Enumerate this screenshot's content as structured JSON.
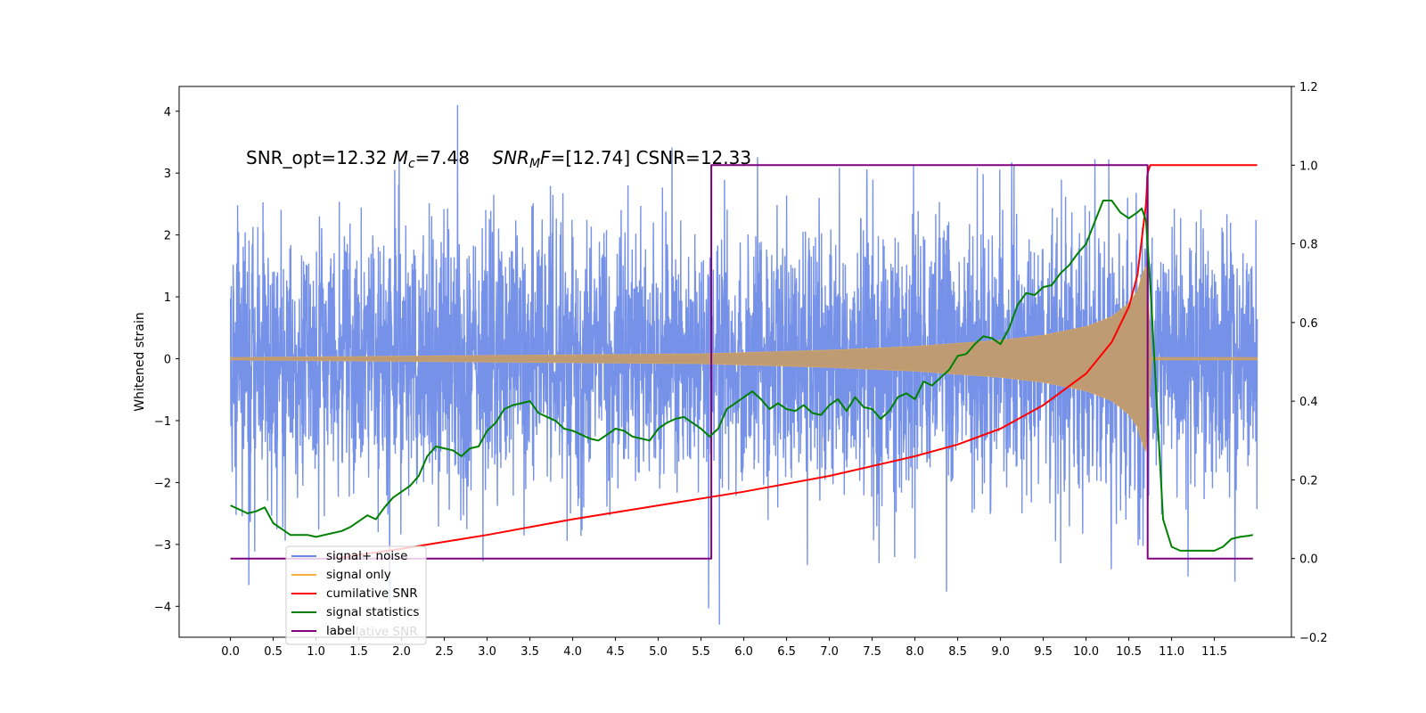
{
  "chart_data": {
    "type": "line",
    "title": "",
    "xlabel": "",
    "ylabel": "Whitened strain",
    "xlim": [
      -0.6,
      12.4
    ],
    "ylim": [
      -4.5,
      4.4
    ],
    "y2lim": [
      -0.2,
      1.2
    ],
    "grid": false,
    "legend_position": "lower-left",
    "x_ticks": [
      "0.0",
      "0.5",
      "1.0",
      "1.5",
      "2.0",
      "2.5",
      "3.0",
      "3.5",
      "4.0",
      "4.5",
      "5.0",
      "5.5",
      "6.0",
      "6.5",
      "7.0",
      "7.5",
      "8.0",
      "8.5",
      "9.0",
      "9.5",
      "10.0",
      "10.5",
      "11.0",
      "11.5"
    ],
    "y_ticks": [
      "4",
      "3",
      "2",
      "1",
      "0",
      "−1",
      "−2",
      "−3",
      "−4"
    ],
    "y2_ticks": [
      "1.2",
      "1.0",
      "0.8",
      "0.6",
      "0.4",
      "0.2",
      "0.0",
      "−0.2"
    ],
    "annotation": {
      "p1": "SNR_opt=12.32 ",
      "mc_M": "M",
      "mc_sub": "c",
      "p2": "=7.48    ",
      "snr_main": "SNR",
      "snr_sub": "M",
      "snr_F": "F",
      "p3": "=[12.74] CSNR=12.33"
    },
    "series": [
      {
        "name": "signal+ noise",
        "color": "#6a88e6",
        "axis": "left",
        "noise_std": 1.05,
        "x_range": [
          0.0,
          12.0
        ]
      },
      {
        "name": "signal only",
        "color": "#f5b041",
        "axis": "left",
        "x_range": [
          0.0,
          12.0
        ],
        "chirp_end": 10.72,
        "envelope": {
          "x": [
            0.0,
            5.5,
            7.0,
            8.0,
            9.0,
            9.5,
            10.0,
            10.3,
            10.5,
            10.6,
            10.65,
            10.7,
            10.72,
            10.75
          ],
          "y": [
            0.02,
            0.08,
            0.14,
            0.2,
            0.3,
            0.38,
            0.52,
            0.68,
            0.9,
            1.1,
            1.35,
            1.5,
            1.5,
            0.02
          ]
        }
      },
      {
        "name": "cumilative SNR",
        "color": "#ff0000",
        "axis": "right",
        "x": [
          1.2,
          2.0,
          3.0,
          4.0,
          5.0,
          6.0,
          7.0,
          8.0,
          8.5,
          9.0,
          9.5,
          10.0,
          10.3,
          10.5,
          10.6,
          10.7,
          10.72,
          10.75,
          12.0
        ],
        "y": [
          0.0,
          0.025,
          0.06,
          0.1,
          0.135,
          0.17,
          0.21,
          0.26,
          0.29,
          0.33,
          0.39,
          0.47,
          0.55,
          0.64,
          0.72,
          0.9,
          0.98,
          1.0,
          1.0
        ]
      },
      {
        "name": "signal statistics",
        "color": "#008000",
        "axis": "right",
        "x": [
          0.0,
          0.1,
          0.2,
          0.3,
          0.4,
          0.5,
          0.6,
          0.7,
          0.8,
          0.9,
          1.0,
          1.1,
          1.2,
          1.3,
          1.4,
          1.5,
          1.6,
          1.7,
          1.8,
          1.9,
          2.0,
          2.1,
          2.2,
          2.3,
          2.4,
          2.5,
          2.6,
          2.7,
          2.8,
          2.9,
          3.0,
          3.1,
          3.2,
          3.3,
          3.4,
          3.5,
          3.6,
          3.7,
          3.8,
          3.9,
          4.0,
          4.1,
          4.2,
          4.3,
          4.4,
          4.5,
          4.6,
          4.7,
          4.8,
          4.9,
          5.0,
          5.1,
          5.2,
          5.3,
          5.4,
          5.5,
          5.6,
          5.7,
          5.8,
          5.9,
          6.0,
          6.1,
          6.2,
          6.3,
          6.4,
          6.5,
          6.6,
          6.7,
          6.8,
          6.9,
          7.0,
          7.1,
          7.2,
          7.3,
          7.4,
          7.5,
          7.6,
          7.7,
          7.8,
          7.9,
          8.0,
          8.1,
          8.2,
          8.3,
          8.4,
          8.5,
          8.6,
          8.7,
          8.8,
          8.9,
          9.0,
          9.1,
          9.2,
          9.3,
          9.4,
          9.5,
          9.6,
          9.7,
          9.8,
          9.9,
          10.0,
          10.1,
          10.2,
          10.3,
          10.4,
          10.5,
          10.6,
          10.65,
          10.7,
          10.75,
          10.8,
          10.85,
          10.9,
          11.0,
          11.1,
          11.2,
          11.3,
          11.4,
          11.5,
          11.6,
          11.7,
          11.8,
          11.9,
          11.95
        ],
        "y": [
          0.135,
          0.125,
          0.115,
          0.12,
          0.13,
          0.09,
          0.075,
          0.06,
          0.06,
          0.06,
          0.055,
          0.06,
          0.065,
          0.07,
          0.08,
          0.095,
          0.11,
          0.1,
          0.13,
          0.155,
          0.17,
          0.185,
          0.21,
          0.26,
          0.285,
          0.28,
          0.275,
          0.26,
          0.28,
          0.285,
          0.325,
          0.345,
          0.38,
          0.39,
          0.395,
          0.4,
          0.37,
          0.36,
          0.35,
          0.33,
          0.325,
          0.315,
          0.305,
          0.3,
          0.315,
          0.33,
          0.325,
          0.31,
          0.305,
          0.3,
          0.33,
          0.345,
          0.355,
          0.36,
          0.345,
          0.33,
          0.31,
          0.33,
          0.38,
          0.395,
          0.41,
          0.425,
          0.405,
          0.38,
          0.395,
          0.38,
          0.375,
          0.39,
          0.37,
          0.365,
          0.39,
          0.405,
          0.375,
          0.41,
          0.385,
          0.38,
          0.355,
          0.375,
          0.41,
          0.42,
          0.405,
          0.45,
          0.44,
          0.46,
          0.48,
          0.515,
          0.52,
          0.545,
          0.565,
          0.56,
          0.545,
          0.585,
          0.645,
          0.675,
          0.67,
          0.69,
          0.695,
          0.725,
          0.745,
          0.775,
          0.8,
          0.855,
          0.91,
          0.91,
          0.88,
          0.865,
          0.88,
          0.89,
          0.86,
          0.7,
          0.5,
          0.3,
          0.1,
          0.03,
          0.02,
          0.02,
          0.02,
          0.02,
          0.02,
          0.03,
          0.05,
          0.055,
          0.058,
          0.06
        ]
      },
      {
        "name": "label",
        "color": "#800080",
        "axis": "right",
        "x": [
          0.0,
          5.62,
          5.62,
          10.72,
          10.72,
          11.95
        ],
        "y": [
          0.0,
          0.0,
          1.0,
          1.0,
          0.0,
          0.0
        ]
      }
    ],
    "legend": [
      {
        "label": "signal+ noise",
        "color": "#6a88e6"
      },
      {
        "label": "signal only",
        "color": "#f5b041"
      },
      {
        "label": "cumilative SNR",
        "color": "#ff0000"
      },
      {
        "label": "signal statistics",
        "color": "#008000"
      },
      {
        "label": "label",
        "color": "#800080"
      }
    ],
    "legend_ghost_text": "cumilative SNR"
  }
}
